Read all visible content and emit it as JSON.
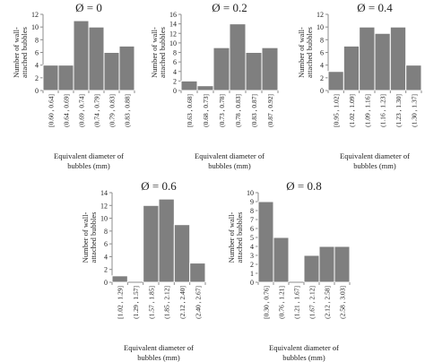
{
  "chart_data": [
    {
      "type": "bar",
      "title": "Ø = 0",
      "categories": [
        "[0.60 , 0.64]",
        "(0.64 , 0.69]",
        "(0.69 , 0.74]",
        "(0.74 , 0.79]",
        "(0.79 , 0.83]",
        "(0.83 , 0.88]"
      ],
      "values": [
        4,
        4,
        11,
        10,
        6,
        7
      ],
      "ylim": [
        0,
        12
      ],
      "yticks": [
        0,
        2,
        4,
        6,
        8,
        10,
        12
      ],
      "ylabel": [
        "Number of wall-",
        "attached bubbles"
      ],
      "xlabel": [
        "Equivalent diameter of",
        "bubbles (mm)"
      ]
    },
    {
      "type": "bar",
      "title": "Ø = 0.2",
      "categories": [
        "[0.63 , 0.68]",
        "(0.68 , 0.73]",
        "(0.73 , 0.78]",
        "(0.78 , 0.83]",
        "(0.83 , 0.87]",
        "(0.87 , 0.92]"
      ],
      "values": [
        2,
        1,
        9,
        14,
        8,
        9
      ],
      "ylim": [
        0,
        16
      ],
      "yticks": [
        0,
        2,
        4,
        6,
        8,
        10,
        12,
        14,
        16
      ],
      "ylabel": [
        "Number of wall-",
        "attached bubbles"
      ],
      "xlabel": [
        "Equivalent diameter of",
        "bubbles (mm)"
      ]
    },
    {
      "type": "bar",
      "title": "Ø = 0.4",
      "categories": [
        "[0.95 , 1.02]",
        "(1.02 , 1.09]",
        "(1.09 , 1.16]",
        "(1.16 , 1.23]",
        "(1.23 , 1.30]",
        "(1.30 , 1.37]"
      ],
      "values": [
        3,
        7,
        10,
        9,
        10,
        4
      ],
      "ylim": [
        0,
        12
      ],
      "yticks": [
        0,
        2,
        4,
        6,
        8,
        10,
        12
      ],
      "ylabel": [
        "Number of wall-",
        "attached bubbles"
      ],
      "xlabel": [
        "Equivalent diameter of",
        "bubbles (mm)"
      ]
    },
    {
      "type": "bar",
      "title": "Ø = 0.6",
      "categories": [
        "[1.02 , 1.29]",
        "(1.29 , 1.57]",
        "(1.57 , 1.85]",
        "(1.85 , 2.12]",
        "(2.12 , 2.40]",
        "(2.40 , 2.67]"
      ],
      "values": [
        1,
        0,
        12,
        13,
        9,
        3
      ],
      "ylim": [
        0,
        14
      ],
      "yticks": [
        0,
        2,
        4,
        6,
        8,
        10,
        12,
        14
      ],
      "ylabel": [
        "Number of wall-",
        "attached bubbles"
      ],
      "xlabel": [
        "Equivalent diameter of",
        "bubbles (mm)"
      ]
    },
    {
      "type": "bar",
      "title": "Ø = 0.8",
      "categories": [
        "[0.30 , 0.76]",
        "(0.76 , 1.21]",
        "(1.21 , 1.67]",
        "(1.67 , 2.12]",
        "(2.12 , 2.58]",
        "(2.58 , 3.03]"
      ],
      "values": [
        9,
        5,
        0,
        3,
        4,
        4
      ],
      "ylim": [
        0,
        10
      ],
      "yticks": [
        0,
        1,
        2,
        3,
        4,
        5,
        6,
        7,
        8,
        9,
        10
      ],
      "ylabel": [
        "Number of wall-",
        "attached bubbles"
      ],
      "xlabel": [
        "Equivalent diameter of",
        "bubbles (mm)"
      ]
    }
  ],
  "colors": {
    "bar_fill": "#7f7f7f",
    "bar_edge": "#ffffff",
    "axis": "#8c8c8c",
    "text": "#222222"
  }
}
